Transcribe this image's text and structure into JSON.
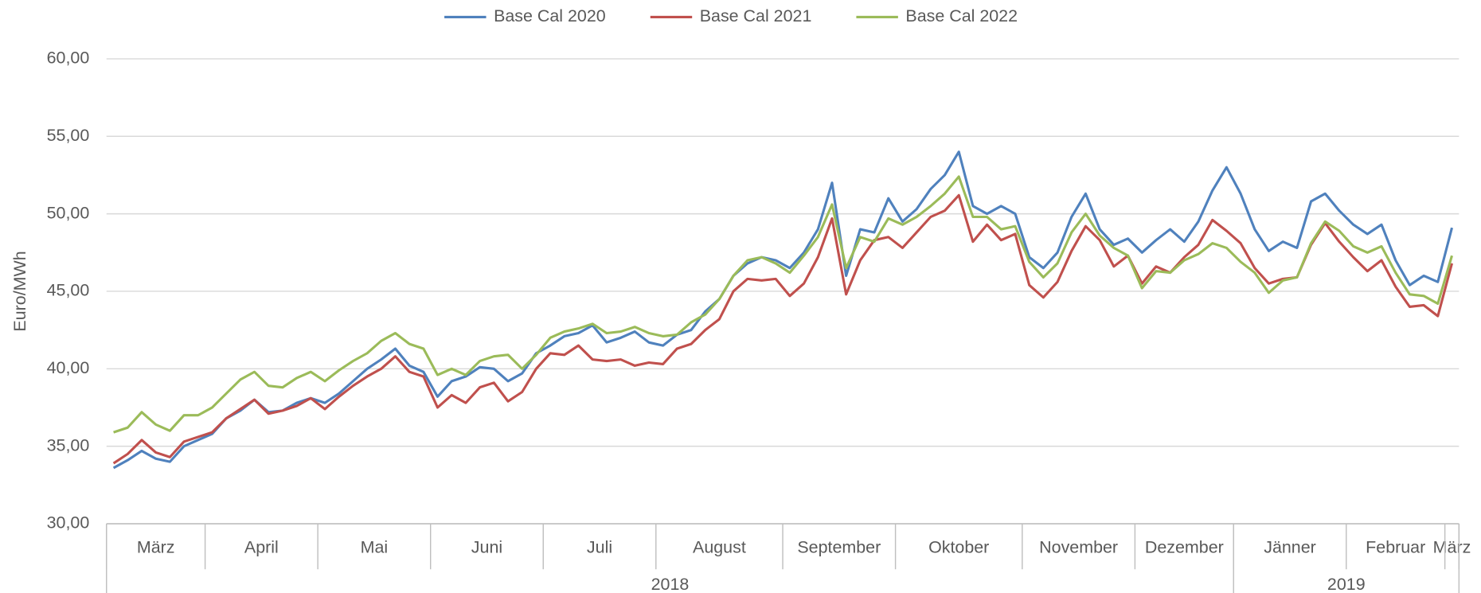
{
  "chart_data": {
    "type": "line",
    "y_label": "Euro/MWh",
    "categories": [
      "März",
      null,
      null,
      null,
      null,
      null,
      null,
      "April",
      null,
      null,
      null,
      null,
      null,
      null,
      null,
      "Mai",
      null,
      null,
      null,
      null,
      null,
      null,
      null,
      "Juni",
      null,
      null,
      null,
      null,
      null,
      null,
      null,
      "Juli",
      null,
      null,
      null,
      null,
      null,
      null,
      null,
      "August",
      null,
      null,
      null,
      null,
      null,
      null,
      null,
      null,
      "September",
      null,
      null,
      null,
      null,
      null,
      null,
      null,
      "Oktober",
      null,
      null,
      null,
      null,
      null,
      null,
      null,
      null,
      "November",
      null,
      null,
      null,
      null,
      null,
      null,
      null,
      "Dezember",
      null,
      null,
      null,
      null,
      null,
      null,
      "Jänner",
      null,
      null,
      null,
      null,
      null,
      null,
      null,
      "Februar",
      null,
      null,
      null,
      null,
      null,
      null,
      "März"
    ],
    "years": [
      "2018",
      null,
      null,
      null,
      null,
      null,
      null,
      null,
      null,
      null,
      null,
      null,
      null,
      null,
      null,
      null,
      null,
      null,
      null,
      null,
      null,
      null,
      null,
      null,
      null,
      null,
      null,
      null,
      null,
      null,
      null,
      null,
      null,
      null,
      null,
      null,
      null,
      null,
      null,
      null,
      null,
      null,
      null,
      null,
      null,
      null,
      null,
      null,
      null,
      null,
      null,
      null,
      null,
      null,
      null,
      null,
      null,
      null,
      null,
      null,
      null,
      null,
      null,
      null,
      null,
      null,
      null,
      null,
      null,
      null,
      null,
      null,
      null,
      null,
      null,
      null,
      null,
      null,
      null,
      null,
      "2019",
      null,
      null,
      null,
      null,
      null,
      null,
      null,
      null,
      null,
      null,
      null,
      null,
      null,
      null,
      null
    ],
    "series": [
      {
        "name": "Base Cal 2020",
        "color": "#4f81bd",
        "values": [
          33.6,
          34.1,
          34.7,
          34.2,
          34.0,
          35.0,
          35.4,
          35.8,
          36.8,
          37.3,
          38.0,
          37.2,
          37.3,
          37.8,
          38.1,
          37.8,
          38.4,
          39.2,
          40.0,
          40.6,
          41.3,
          40.2,
          39.8,
          38.2,
          39.2,
          39.5,
          40.1,
          40.0,
          39.2,
          39.7,
          41.0,
          41.5,
          42.1,
          42.3,
          42.8,
          41.7,
          42.0,
          42.4,
          41.7,
          41.5,
          42.2,
          42.5,
          43.7,
          44.5,
          46.0,
          46.8,
          47.2,
          47.0,
          46.5,
          47.5,
          49.0,
          52.0,
          46.0,
          49.0,
          48.8,
          51.0,
          49.5,
          50.3,
          51.6,
          52.5,
          54.0,
          50.5,
          50.0,
          50.5,
          50.0,
          47.2,
          46.5,
          47.5,
          49.8,
          51.3,
          49.0,
          48.0,
          48.4,
          47.5,
          48.3,
          49.0,
          48.2,
          49.5,
          51.5,
          53.0,
          51.3,
          49.0,
          47.6,
          48.2,
          47.8,
          50.8,
          51.3,
          50.2,
          49.3,
          48.7,
          49.3,
          47.0,
          45.4,
          46.0,
          45.6,
          49.1
        ]
      },
      {
        "name": "Base Cal 2021",
        "color": "#c0504d",
        "values": [
          33.9,
          34.5,
          35.4,
          34.6,
          34.3,
          35.3,
          35.6,
          35.9,
          36.8,
          37.4,
          38.0,
          37.1,
          37.3,
          37.6,
          38.1,
          37.4,
          38.2,
          38.9,
          39.5,
          40.0,
          40.8,
          39.8,
          39.5,
          37.5,
          38.3,
          37.8,
          38.8,
          39.1,
          37.9,
          38.5,
          40.0,
          41.0,
          40.9,
          41.5,
          40.6,
          40.5,
          40.6,
          40.2,
          40.4,
          40.3,
          41.3,
          41.6,
          42.5,
          43.2,
          45.0,
          45.8,
          45.7,
          45.8,
          44.7,
          45.5,
          47.2,
          49.7,
          44.8,
          47.0,
          48.3,
          48.5,
          47.8,
          48.8,
          49.8,
          50.2,
          51.2,
          48.2,
          49.3,
          48.3,
          48.7,
          45.4,
          44.6,
          45.6,
          47.6,
          49.2,
          48.3,
          46.6,
          47.3,
          45.5,
          46.6,
          46.2,
          47.2,
          48.0,
          49.6,
          48.9,
          48.1,
          46.5,
          45.5,
          45.8,
          45.9,
          48.0,
          49.4,
          48.2,
          47.2,
          46.3,
          47.0,
          45.3,
          44.0,
          44.1,
          43.4,
          46.8
        ]
      },
      {
        "name": "Base Cal 2022",
        "color": "#9bbb59",
        "values": [
          35.9,
          36.2,
          37.2,
          36.4,
          36.0,
          37.0,
          37.0,
          37.5,
          38.4,
          39.3,
          39.8,
          38.9,
          38.8,
          39.4,
          39.8,
          39.2,
          39.9,
          40.5,
          41.0,
          41.8,
          42.3,
          41.6,
          41.3,
          39.6,
          40.0,
          39.6,
          40.5,
          40.8,
          40.9,
          40.0,
          40.9,
          42.0,
          42.4,
          42.6,
          42.9,
          42.3,
          42.4,
          42.7,
          42.3,
          42.1,
          42.2,
          43.0,
          43.5,
          44.5,
          46.0,
          47.0,
          47.2,
          46.8,
          46.2,
          47.3,
          48.5,
          50.6,
          46.5,
          48.5,
          48.2,
          49.7,
          49.3,
          49.8,
          50.5,
          51.3,
          52.4,
          49.8,
          49.8,
          49.0,
          49.2,
          46.9,
          45.9,
          46.8,
          48.8,
          50.0,
          48.6,
          47.8,
          47.3,
          45.2,
          46.3,
          46.2,
          47.0,
          47.4,
          48.1,
          47.8,
          46.9,
          46.2,
          44.9,
          45.7,
          45.9,
          48.1,
          49.5,
          48.9,
          47.9,
          47.5,
          47.9,
          46.2,
          44.8,
          44.7,
          44.2,
          47.3
        ]
      }
    ],
    "ylim": [
      30,
      60
    ],
    "yticks": [
      {
        "value": 30,
        "label": "30,00"
      },
      {
        "value": 35,
        "label": "35,00"
      },
      {
        "value": 40,
        "label": "40,00"
      },
      {
        "value": 45,
        "label": "45,00"
      },
      {
        "value": 50,
        "label": "50,00"
      },
      {
        "value": 55,
        "label": "55,00"
      },
      {
        "value": 60,
        "label": "60,00"
      }
    ],
    "grid": true,
    "legend": "top"
  }
}
